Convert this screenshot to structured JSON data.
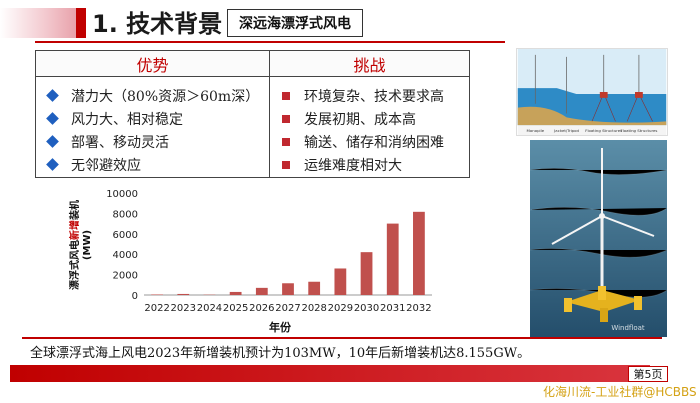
{
  "header": {
    "title": "1. 技术背景",
    "subtitle": "深远海漂浮式风电"
  },
  "table": {
    "advantages_head": "优势",
    "challenges_head": "挑战",
    "advantages": [
      "潜力大（80%资源＞60m深）",
      "风力大、相对稳定",
      "部署、移动灵活",
      "无邻避效应"
    ],
    "challenges": [
      "环境复杂、技术要求高",
      "发展初期、成本高",
      "输送、储存和消纳困难",
      "运维难度相对大"
    ]
  },
  "chart_data": {
    "type": "bar",
    "categories": [
      "2022",
      "2023",
      "2024",
      "2025",
      "2026",
      "2027",
      "2028",
      "2029",
      "2030",
      "2031",
      "2032"
    ],
    "values": [
      50,
      103,
      30,
      300,
      700,
      1150,
      1300,
      2600,
      4200,
      7000,
      8155
    ],
    "ylim": [
      0,
      10000
    ],
    "yticks": [
      "0",
      "2000",
      "4000",
      "6000",
      "8000",
      "10000"
    ],
    "xlabel": "年份",
    "ylabel_parts": [
      "漂浮式风电",
      "新增",
      "装机"
    ],
    "ylabel_unit": "(MW)",
    "bar_color": "#c0504d"
  },
  "photo_top": {
    "labels": [
      "Monopile",
      "Jacket/Tripod",
      "Floating Structures",
      "Floating Structures"
    ]
  },
  "photo_bottom": {
    "watermark": "Windfloat"
  },
  "footer": {
    "summary": "全球漂浮式海上风电2023年新增装机预计为103MW，10年后新增装机达8.155GW。",
    "page": "第5页",
    "watermark": "化海川流-工业社群@HCBBS"
  }
}
